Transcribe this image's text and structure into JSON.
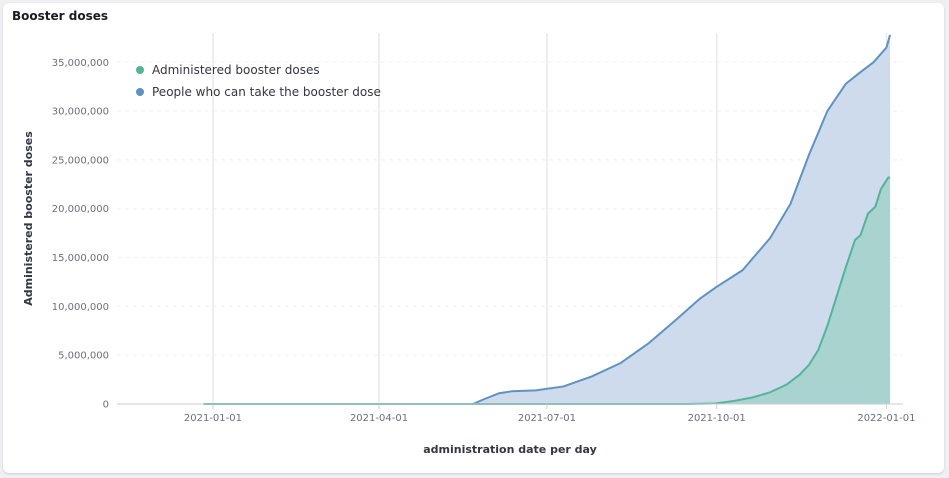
{
  "panel": {
    "title": "Booster doses"
  },
  "chart_data": {
    "type": "area",
    "title": "Booster doses",
    "xlabel": "administration date per day",
    "ylabel": "Administered booster doses",
    "x_ticks": [
      "2021-01-01",
      "2021-04-01",
      "2021-07-01",
      "2021-10-01",
      "2022-01-01"
    ],
    "y_ticks": [
      "0",
      "5,000,000",
      "10,000,000",
      "15,000,000",
      "20,000,000",
      "25,000,000",
      "30,000,000",
      "35,000,000"
    ],
    "ylim": [
      0,
      38000000
    ],
    "xlim": [
      "2020-11-10",
      "2022-01-10"
    ],
    "grid": {
      "vertical": true,
      "horizontal": true
    },
    "legend_position": "top-left",
    "series": [
      {
        "name": "Administered booster doses",
        "color": "#54b399",
        "fill": "#a7d3cc",
        "points": [
          [
            "2020-12-27",
            0
          ],
          [
            "2021-09-15",
            0
          ],
          [
            "2021-09-30",
            50000
          ],
          [
            "2021-10-10",
            300000
          ],
          [
            "2021-10-20",
            650000
          ],
          [
            "2021-10-30",
            1200000
          ],
          [
            "2021-11-08",
            2000000
          ],
          [
            "2021-11-15",
            3000000
          ],
          [
            "2021-11-20",
            4000000
          ],
          [
            "2021-11-25",
            5500000
          ],
          [
            "2021-11-30",
            8000000
          ],
          [
            "2021-12-05",
            11000000
          ],
          [
            "2021-12-10",
            14000000
          ],
          [
            "2021-12-15",
            16800000
          ],
          [
            "2021-12-18",
            17300000
          ],
          [
            "2021-12-22",
            19500000
          ],
          [
            "2021-12-26",
            20200000
          ],
          [
            "2021-12-29",
            22000000
          ],
          [
            "2022-01-02",
            23200000
          ],
          [
            "2022-01-03",
            23200000
          ]
        ]
      },
      {
        "name": "People who can take the booster dose",
        "color": "#6092c0",
        "fill": "#cddbed",
        "points": [
          [
            "2020-12-27",
            0
          ],
          [
            "2021-05-22",
            0
          ],
          [
            "2021-05-28",
            500000
          ],
          [
            "2021-06-05",
            1100000
          ],
          [
            "2021-06-12",
            1300000
          ],
          [
            "2021-06-25",
            1400000
          ],
          [
            "2021-07-10",
            1800000
          ],
          [
            "2021-07-25",
            2800000
          ],
          [
            "2021-08-10",
            4200000
          ],
          [
            "2021-08-25",
            6200000
          ],
          [
            "2021-09-10",
            8800000
          ],
          [
            "2021-09-22",
            10800000
          ],
          [
            "2021-10-01",
            12000000
          ],
          [
            "2021-10-15",
            13700000
          ],
          [
            "2021-10-30",
            17000000
          ],
          [
            "2021-11-10",
            20500000
          ],
          [
            "2021-11-20",
            25500000
          ],
          [
            "2021-11-30",
            30000000
          ],
          [
            "2021-12-10",
            32800000
          ],
          [
            "2021-12-18",
            34000000
          ],
          [
            "2021-12-25",
            35000000
          ],
          [
            "2022-01-01",
            36500000
          ],
          [
            "2022-01-03",
            37800000
          ]
        ]
      }
    ]
  }
}
